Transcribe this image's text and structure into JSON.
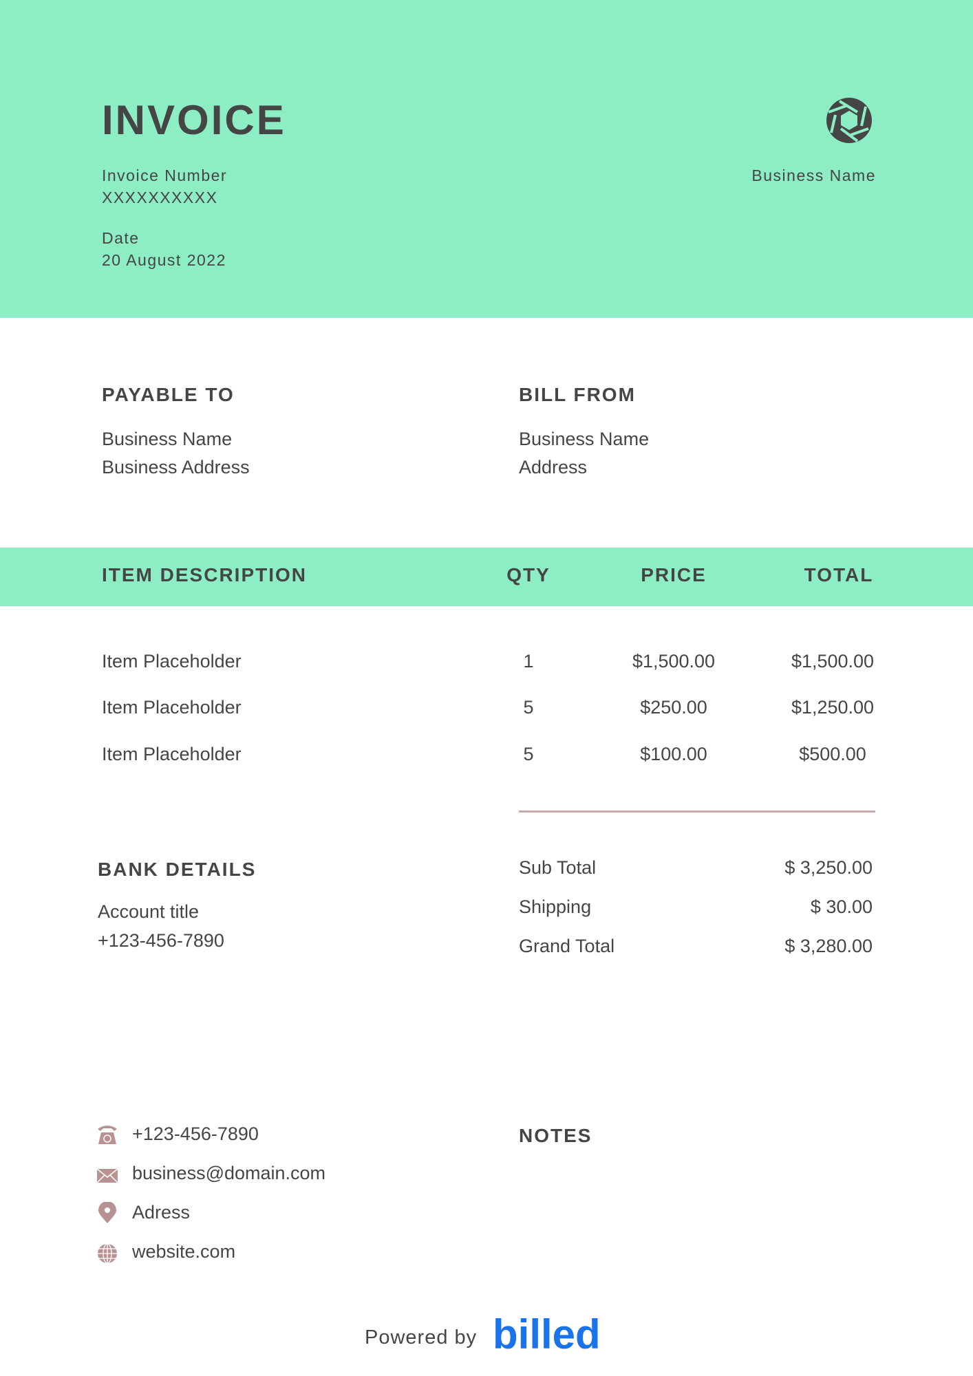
{
  "header": {
    "title": "INVOICE",
    "invoice_number_label": "Invoice Number",
    "invoice_number": "XXXXXXXXXX",
    "date_label": "Date",
    "date": "20 August 2022",
    "business_name": "Business Name",
    "logo_icon": "aperture-icon"
  },
  "payable_to": {
    "heading": "PAYABLE TO",
    "name": "Business Name",
    "address": "Business Address"
  },
  "bill_from": {
    "heading": "BILL FROM",
    "name": "Business Name",
    "address": "Address"
  },
  "table": {
    "headers": [
      "ITEM DESCRIPTION",
      "QTY",
      "PRICE",
      "TOTAL"
    ],
    "rows": [
      {
        "desc": "Item Placeholder",
        "qty": "1",
        "price": "$1,500.00",
        "total": "$1,500.00"
      },
      {
        "desc": "Item Placeholder",
        "qty": "5",
        "price": "$250.00",
        "total": "$1,250.00"
      },
      {
        "desc": "Item Placeholder",
        "qty": "5",
        "price": "$100.00",
        "total": "$500.00"
      }
    ]
  },
  "bank": {
    "heading": "BANK DETAILS",
    "account": "Account title",
    "phone": "+123-456-7890"
  },
  "totals": [
    {
      "label": "Sub Total",
      "value": "$ 3,250.00"
    },
    {
      "label": "Shipping",
      "value": "$ 30.00"
    },
    {
      "label": "Grand Total",
      "value": "$ 3,280.00"
    }
  ],
  "contact": [
    {
      "icon": "phone-icon",
      "text": "+123-456-7890"
    },
    {
      "icon": "email-icon",
      "text": "business@domain.com"
    },
    {
      "icon": "location-icon",
      "text": "Adress"
    },
    {
      "icon": "globe-icon",
      "text": "website.com"
    }
  ],
  "notes": {
    "heading": "NOTES"
  },
  "footer": {
    "powered_by": "Powered by",
    "brand": "billed"
  },
  "colors": {
    "accent": "#8DEDC5",
    "text": "#454545",
    "icon": "#B89290",
    "brand": "#1A73E8"
  }
}
